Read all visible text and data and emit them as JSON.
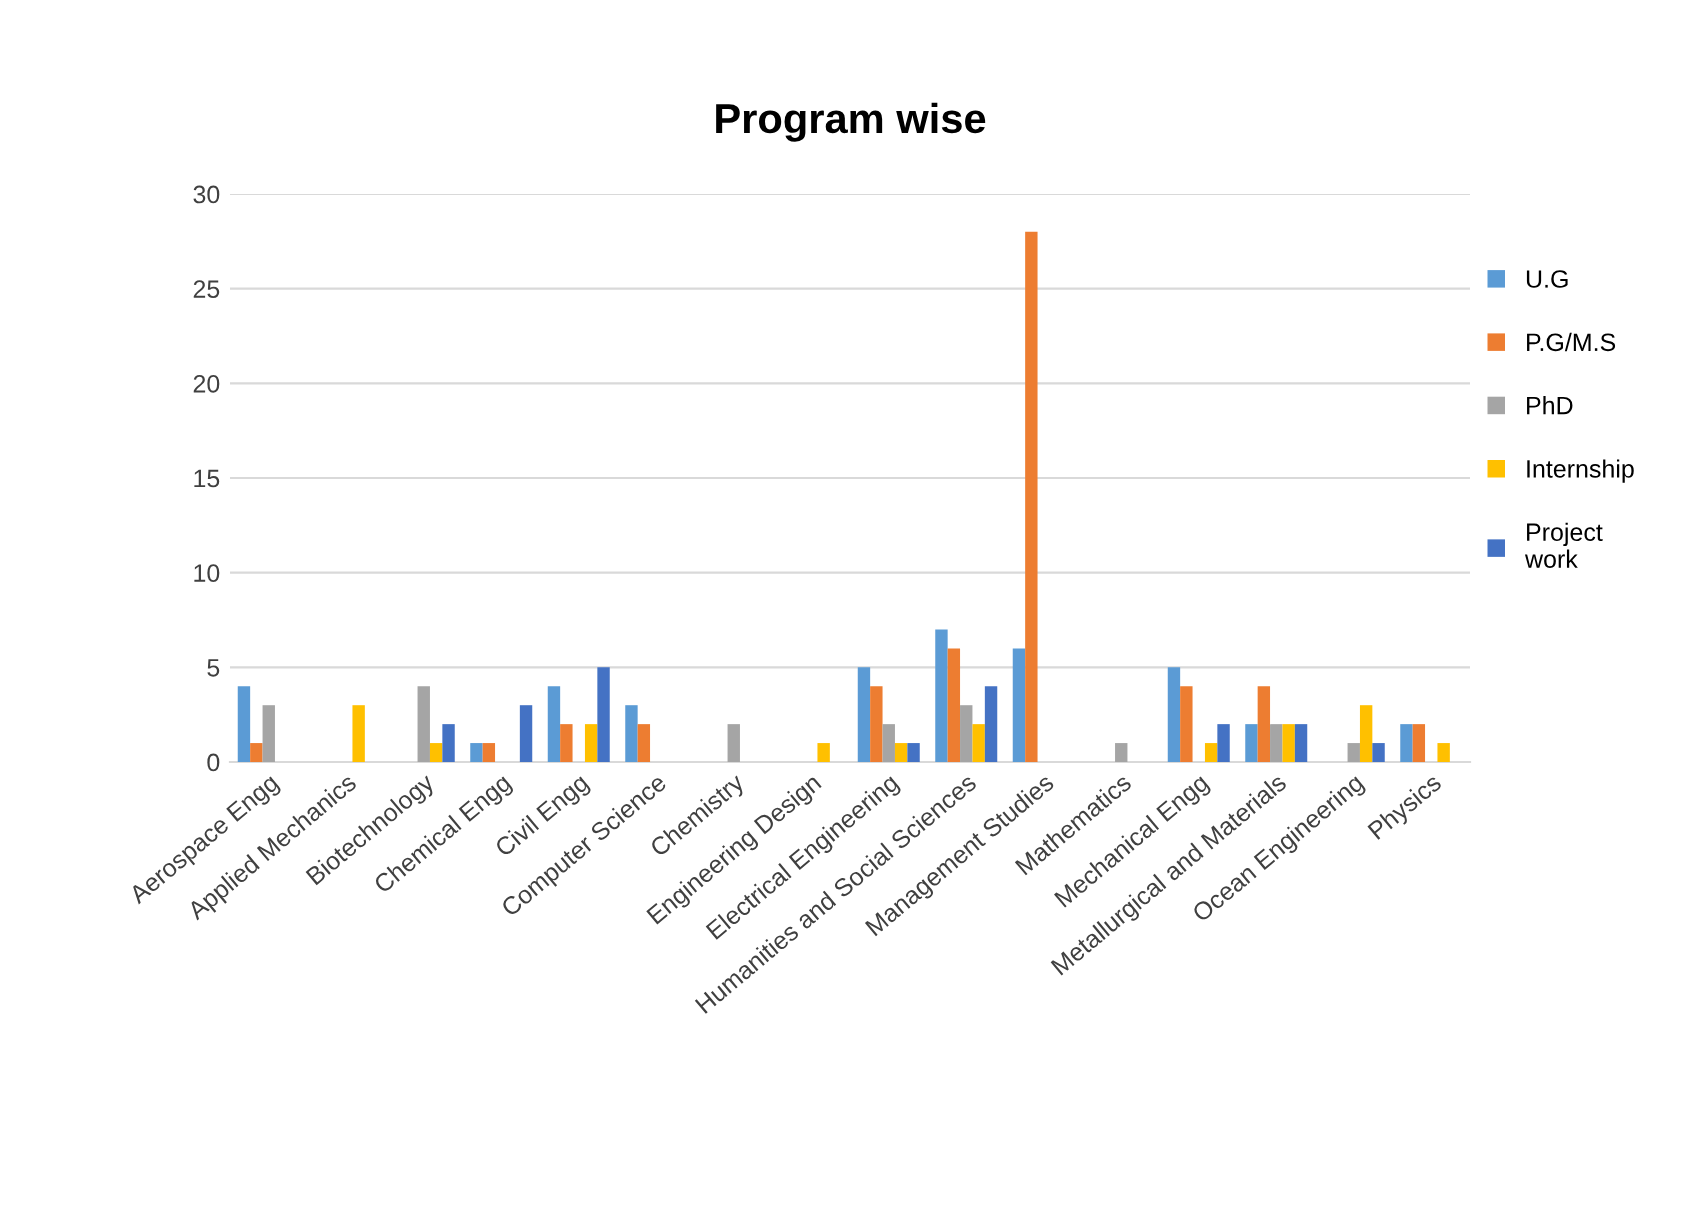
{
  "chart_data": {
    "type": "bar",
    "title": "Program wise",
    "categories": [
      "Aerospace Engg",
      "Applied Mechanics",
      "Biotechnology",
      "Chemical Engg",
      "Civil Engg",
      "Computer Science",
      "Chemistry",
      "Engineering Design",
      "Electrical Engineering",
      "Humanities and Social Sciences",
      "Management Studies",
      "Mathematics",
      "Mechanical Engg",
      "Metallurgical and Materials",
      "Ocean Engineering",
      "Physics"
    ],
    "series": [
      {
        "name": "U.G",
        "color": "#5b9bd5",
        "values": [
          4,
          0,
          0,
          1,
          4,
          3,
          0,
          0,
          5,
          7,
          6,
          0,
          5,
          2,
          0,
          2
        ]
      },
      {
        "name": "P.G/M.S",
        "color": "#ed7d31",
        "values": [
          1,
          0,
          0,
          1,
          2,
          2,
          0,
          0,
          4,
          6,
          28,
          0,
          4,
          4,
          0,
          2
        ]
      },
      {
        "name": "PhD",
        "color": "#a5a5a5",
        "values": [
          3,
          0,
          4,
          0,
          0,
          0,
          2,
          0,
          2,
          3,
          0,
          1,
          0,
          2,
          1,
          0
        ]
      },
      {
        "name": "Internship",
        "color": "#ffc000",
        "values": [
          0,
          3,
          1,
          0,
          2,
          0,
          0,
          1,
          1,
          2,
          0,
          0,
          1,
          2,
          3,
          1
        ]
      },
      {
        "name": "Project work",
        "color": "#4472c4",
        "values": [
          0,
          0,
          2,
          3,
          5,
          0,
          0,
          0,
          1,
          4,
          0,
          0,
          2,
          2,
          1,
          0
        ]
      }
    ],
    "ylim": [
      0,
      30
    ],
    "yticks": [
      0,
      5,
      10,
      15,
      20,
      25,
      30
    ],
    "grid": "y",
    "legend": "right"
  }
}
